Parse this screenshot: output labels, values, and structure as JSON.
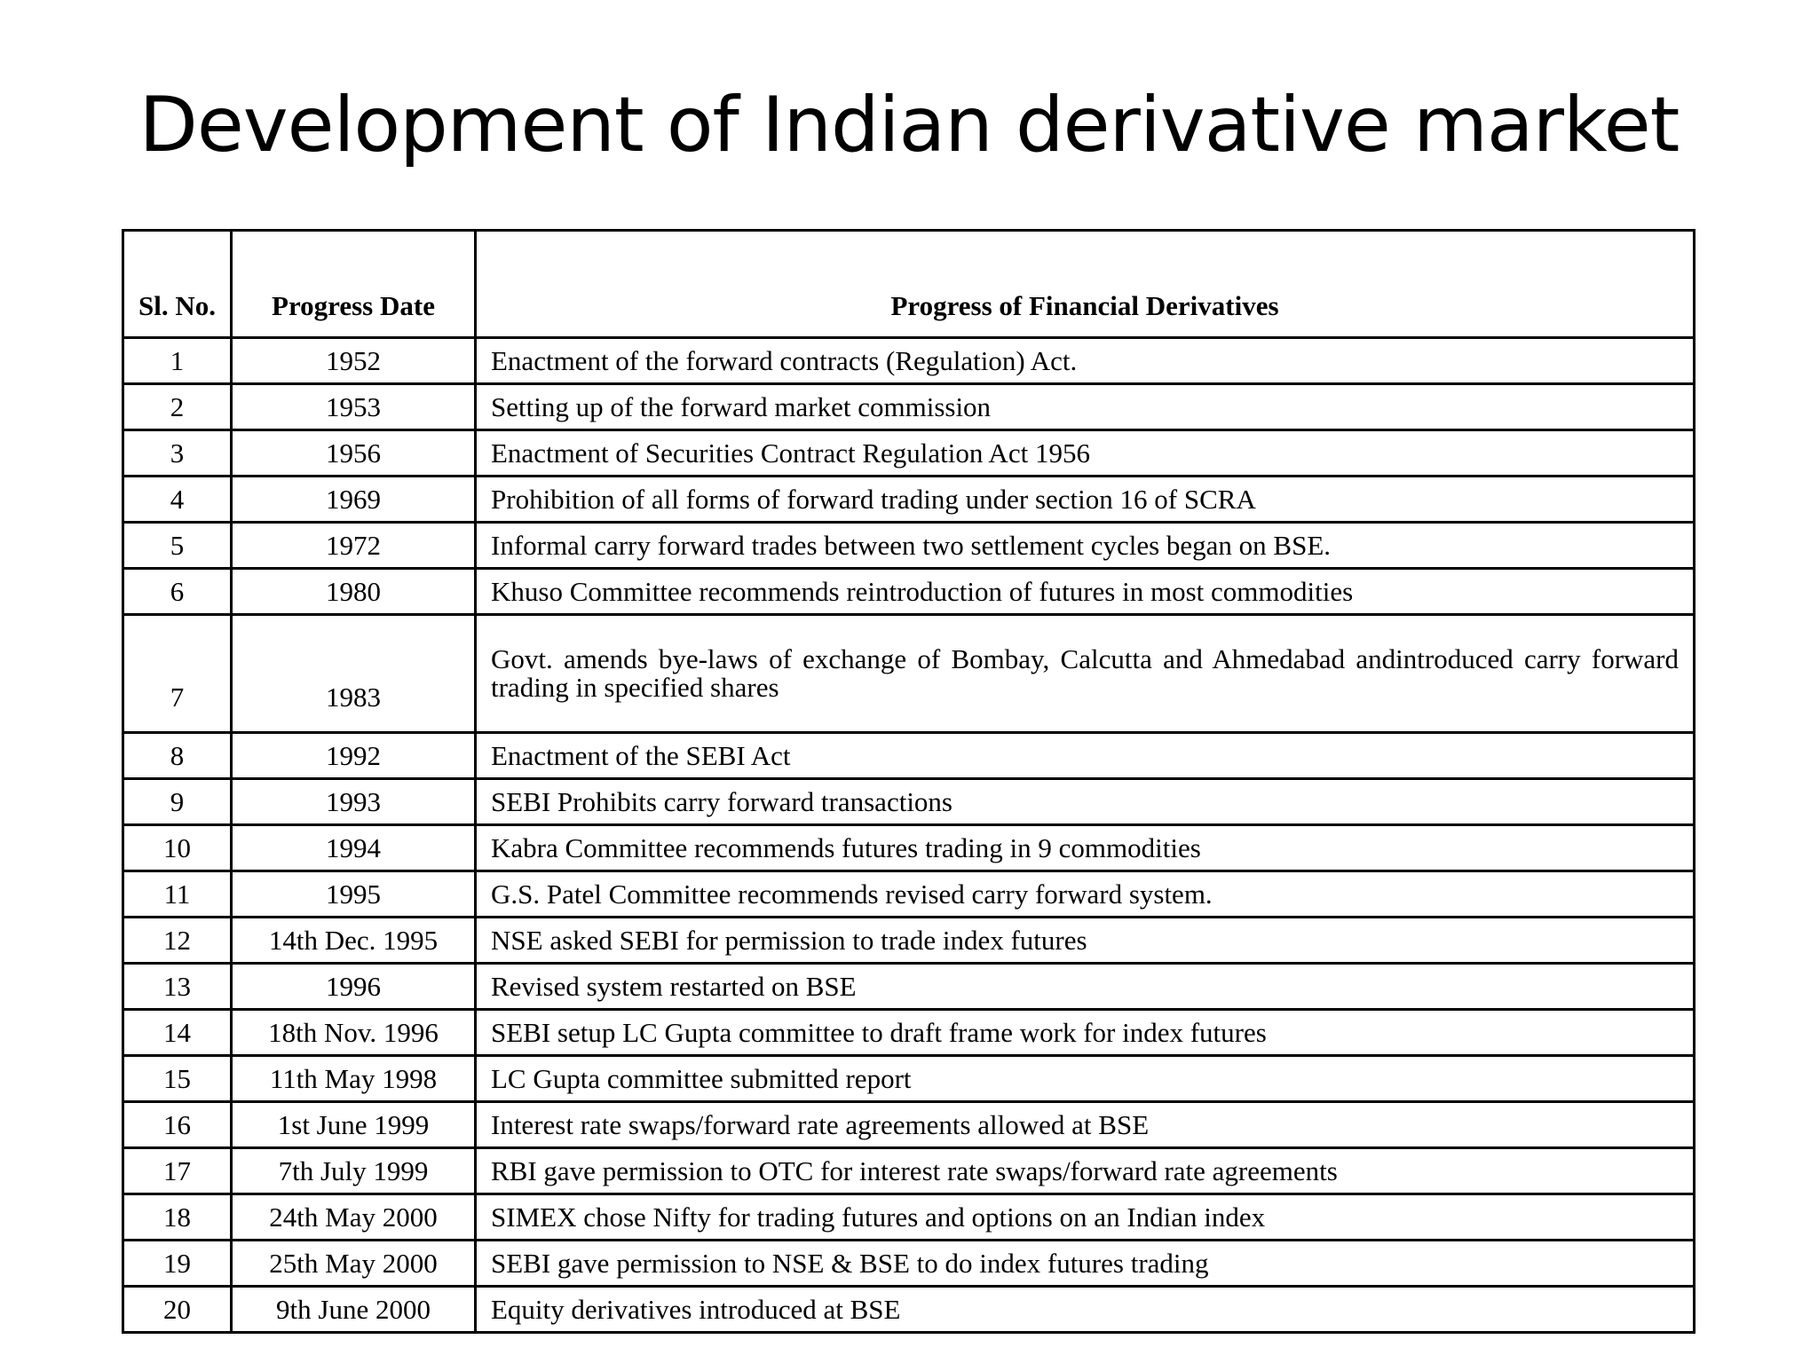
{
  "title": "Development of Indian derivative market",
  "table": {
    "headers": {
      "sl": "Sl. No.",
      "date": "Progress Date",
      "progress": "Progress of Financial Derivatives"
    },
    "rows": [
      {
        "sl": "1",
        "date": "1952",
        "progress": "Enactment of the forward contracts (Regulation) Act."
      },
      {
        "sl": "2",
        "date": "1953",
        "progress": "Setting up of the forward market commission"
      },
      {
        "sl": "3",
        "date": "1956",
        "progress": "Enactment of Securities Contract Regulation Act 1956"
      },
      {
        "sl": "4",
        "date": "1969",
        "progress": "Prohibition of all forms of forward trading under section 16 of SCRA"
      },
      {
        "sl": "5",
        "date": "1972",
        "progress": "Informal carry forward trades between two settlement cycles began on BSE."
      },
      {
        "sl": "6",
        "date": "1980",
        "progress": "Khuso Committee recommends reintroduction of futures in most commodities"
      },
      {
        "sl": "7",
        "date": "1983",
        "progress": "Govt. amends bye-laws of exchange of Bombay, Calcutta and Ahmedabad andintroduced carry forward trading in specified shares"
      },
      {
        "sl": "8",
        "date": "1992",
        "progress": "Enactment of the SEBI Act"
      },
      {
        "sl": "9",
        "date": "1993",
        "progress": "SEBI Prohibits carry forward transactions"
      },
      {
        "sl": "10",
        "date": "1994",
        "progress": "Kabra Committee recommends futures trading in 9 commodities"
      },
      {
        "sl": "11",
        "date": "1995",
        "progress": "G.S. Patel Committee recommends revised carry forward system."
      },
      {
        "sl": "12",
        "date": "14th Dec. 1995",
        "progress": "NSE asked SEBI for permission to trade index futures"
      },
      {
        "sl": "13",
        "date": "1996",
        "progress": "Revised system restarted on BSE"
      },
      {
        "sl": "14",
        "date": "18th Nov. 1996",
        "progress": "SEBI setup LC Gupta committee to draft frame work for index futures"
      },
      {
        "sl": "15",
        "date": "11th May 1998",
        "progress": "LC Gupta committee submitted report"
      },
      {
        "sl": "16",
        "date": "1st June 1999",
        "progress": "Interest rate swaps/forward rate agreements allowed at BSE"
      },
      {
        "sl": "17",
        "date": "7th July 1999",
        "progress": "RBI gave permission to OTC for interest rate swaps/forward rate agreements"
      },
      {
        "sl": "18",
        "date": "24th May 2000",
        "progress": "SIMEX chose Nifty for trading futures and options on an Indian index"
      },
      {
        "sl": "19",
        "date": "25th May 2000",
        "progress": "SEBI gave permission to NSE & BSE to do index futures trading"
      },
      {
        "sl": "20",
        "date": "9th June 2000",
        "progress": "Equity derivatives introduced at BSE"
      }
    ]
  }
}
